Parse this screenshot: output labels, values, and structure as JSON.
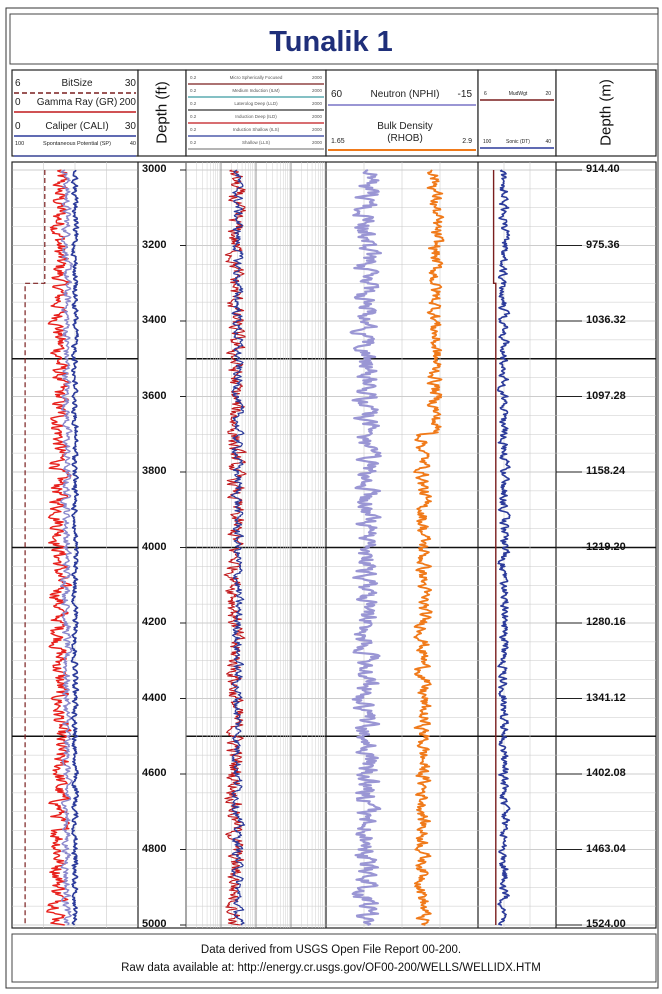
{
  "title": "Tunalik 1",
  "headers": {
    "track1": [
      {
        "min": "6",
        "name": "BitSize",
        "max": "30",
        "color": "#7a1e1e"
      },
      {
        "min": "0",
        "name": "Gamma Ray (GR)",
        "max": "200",
        "color": "#c0181c"
      },
      {
        "min": "0",
        "name": "Caliper (CALI)",
        "max": "30",
        "color": "#2b3a9a"
      },
      {
        "min": "100",
        "name": "Spontaneous Potential (SP)",
        "max": "40",
        "color": "#2b3a9a"
      }
    ],
    "track2_curves": [
      {
        "min": "0.2",
        "name": "Micro Spherically Focused",
        "max": "2000",
        "color": "#7a1e1e"
      },
      {
        "min": "0.2",
        "name": "Medium Induction (ILM)",
        "max": "2000",
        "color": "#3a9aa0"
      },
      {
        "min": "0.2",
        "name": "Laterolog Deep (LLD)",
        "max": "2000",
        "color": "#333333"
      },
      {
        "min": "0.2",
        "name": "Induction Deep (ILD)",
        "max": "2000",
        "color": "#c0181c"
      },
      {
        "min": "0.2",
        "name": "Induction Shallow (ILS)",
        "max": "2000",
        "color": "#2b3a9a"
      },
      {
        "min": "0.2",
        "name": "Shallow (LLS)",
        "max": "2000",
        "color": "#888888"
      }
    ],
    "track3": [
      {
        "min": "60",
        "name": "Neutron (NPHI)",
        "max": "-15",
        "color": "#9a96d4"
      },
      {
        "min": "1.65",
        "name": "Bulk Density",
        "sub": "(RHOB)",
        "max": "2.9",
        "color": "#f07a1a"
      }
    ],
    "track4": [
      {
        "min": "6",
        "name": "MudWgt",
        "max": "20",
        "color": "#7a1e1e"
      },
      {
        "min": "100",
        "name": "Sonic (DT)",
        "max": "40",
        "color": "#2b3a9a"
      }
    ],
    "depth_ft_label": "Depth (ft)",
    "depth_m_label": "Depth (m)"
  },
  "chart_data": {
    "type": "line",
    "depth_axis": "Depth (ft)",
    "depth_range_ft": [
      3000,
      5000
    ],
    "depth_ticks_ft": [
      "3000",
      "3200",
      "3400",
      "3600",
      "3800",
      "4000",
      "4200",
      "4400",
      "4600",
      "4800",
      "5000"
    ],
    "depth_ticks_m": [
      "914.40",
      "975.36",
      "1036.32",
      "1097.28",
      "1158.24",
      "1219.20",
      "1280.16",
      "1341.12",
      "1402.08",
      "1463.04",
      "1524.00"
    ],
    "series": [
      {
        "name": "Gamma Ray (GR)",
        "range": [
          0,
          200
        ],
        "color": "#e8201c",
        "typical_value": 75
      },
      {
        "name": "BitSize",
        "range": [
          6,
          30
        ],
        "color": "#7a1e1e",
        "values_by_depth": [
          [
            3000,
            12.25
          ],
          [
            3300,
            12.25
          ],
          [
            3300,
            8.5
          ],
          [
            5000,
            8.5
          ]
        ]
      },
      {
        "name": "Caliper (CALI)",
        "range": [
          0,
          30
        ],
        "color": "#8a88cc",
        "typical_value": 13
      },
      {
        "name": "Spontaneous Potential (SP)",
        "range": [
          100,
          40
        ],
        "color": "#2b3a9a",
        "typical_value": 70
      },
      {
        "name": "Induction Deep (ILD)",
        "range": [
          0.2,
          2000
        ],
        "color": "#c0181c",
        "typical_value": 5
      },
      {
        "name": "Induction Shallow (ILS)",
        "range": [
          0.2,
          2000
        ],
        "color": "#2b3a9a",
        "typical_value": 6
      },
      {
        "name": "Neutron (NPHI)",
        "range": [
          60,
          -15
        ],
        "color": "#9a96d4",
        "typical_value": 40
      },
      {
        "name": "Bulk Density",
        "range": [
          1.65,
          2.9
        ],
        "color": "#f07a1a",
        "typical_value": 2.5
      },
      {
        "name": "MudWgt",
        "range": [
          6,
          20
        ],
        "color": "#7a1e1e",
        "values_by_depth": [
          [
            3000,
            8.8
          ],
          [
            3300,
            8.8
          ],
          [
            3300,
            9.2
          ],
          [
            5000,
            9.2
          ]
        ]
      },
      {
        "name": "Sonic (DT)",
        "range": [
          100,
          40
        ],
        "color": "#2b3a9a",
        "typical_value": 80
      }
    ],
    "grid": true
  },
  "footer": {
    "line1": "Data derived from USGS Open File Report 00-200.",
    "line2": "Raw data available at: http://energy.cr.usgs.gov/OF00-200/WELLS/WELLIDX.HTM"
  }
}
